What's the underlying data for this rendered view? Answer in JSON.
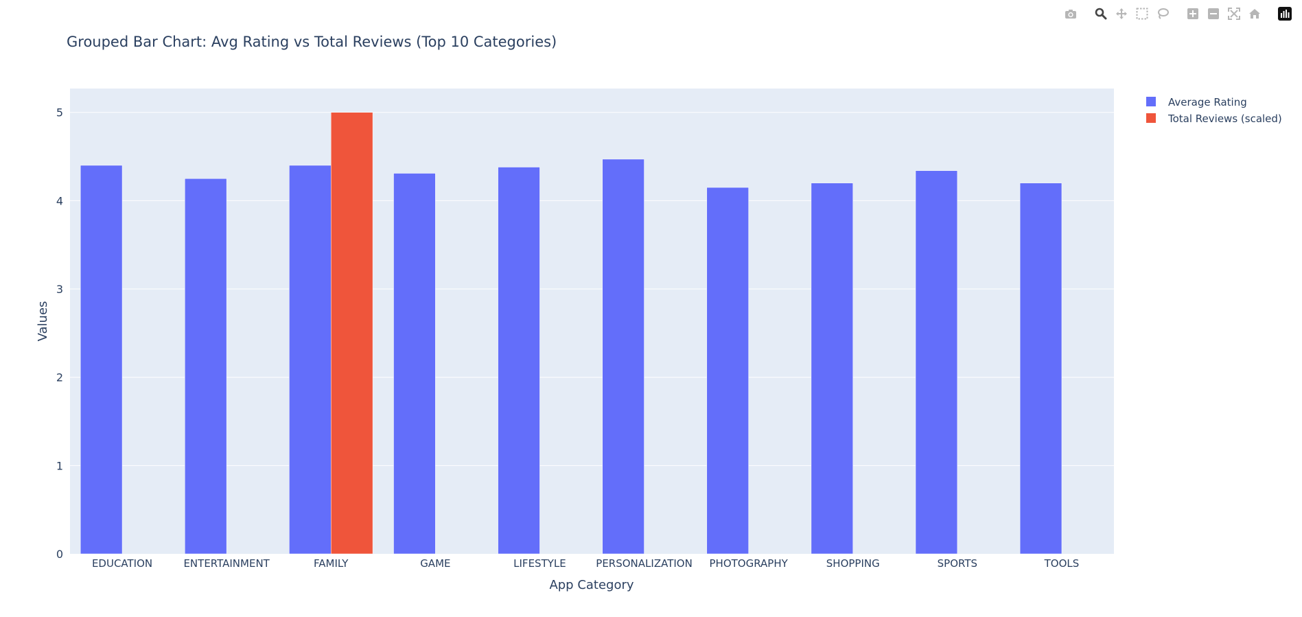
{
  "chart_data": {
    "type": "bar",
    "title": "Grouped Bar Chart: Avg Rating vs Total Reviews (Top 10 Categories)",
    "xlabel": "App Category",
    "ylabel": "Values",
    "ylim": [
      0,
      5.27
    ],
    "yticks": [
      0,
      1,
      2,
      3,
      4,
      5
    ],
    "grid": true,
    "legend_position": "top-right",
    "categories": [
      "EDUCATION",
      "ENTERTAINMENT",
      "FAMILY",
      "GAME",
      "LIFESTYLE",
      "PERSONALIZATION",
      "PHOTOGRAPHY",
      "SHOPPING",
      "SPORTS",
      "TOOLS"
    ],
    "series": [
      {
        "name": "Average Rating",
        "color": "#636efa",
        "values": [
          4.4,
          4.25,
          4.4,
          4.31,
          4.38,
          4.47,
          4.15,
          4.2,
          4.34,
          4.2
        ]
      },
      {
        "name": "Total Reviews (scaled)",
        "color": "#ef553b",
        "values": [
          0,
          0,
          5.0,
          0,
          0,
          0,
          0,
          0,
          0,
          0
        ]
      }
    ]
  },
  "theme": {
    "plot_background": "#e5ecf6",
    "grid_color": "#ffffff",
    "text_color": "#2a3f5f",
    "modebar_icon_color": "#b6b6b6",
    "modebar_active_color": "#444444"
  },
  "modebar": {
    "icons": [
      "camera-icon",
      "zoom-icon",
      "pan-icon",
      "box-select-icon",
      "lasso-select-icon",
      "zoom-in-icon",
      "zoom-out-icon",
      "autoscale-icon",
      "reset-axes-icon",
      "plotly-logo-icon"
    ]
  }
}
